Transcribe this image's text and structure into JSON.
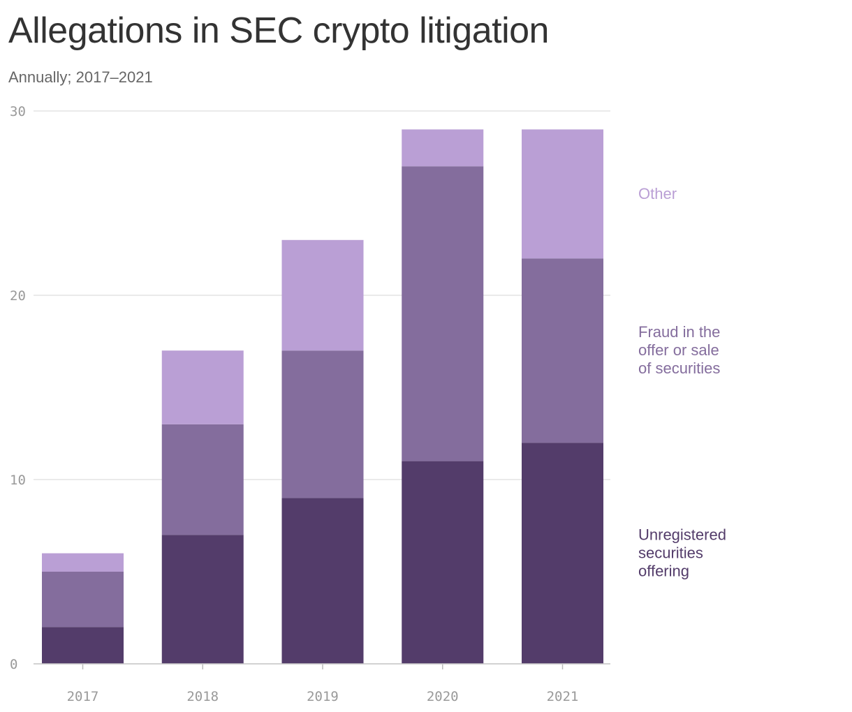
{
  "chart_data": {
    "type": "bar",
    "stacked": true,
    "title": "Allegations in SEC crypto litigation",
    "subtitle": "Annually; 2017–2021",
    "categories": [
      "2017",
      "2018",
      "2019",
      "2020",
      "2021"
    ],
    "series": [
      {
        "name": "Unregistered securities offering",
        "label_lines": [
          "Unregistered",
          "securities",
          "offering"
        ],
        "color": "#533c6a",
        "values": [
          2,
          7,
          9,
          11,
          12
        ]
      },
      {
        "name": "Fraud in the offer or sale of securities",
        "label_lines": [
          "Fraud in the",
          "offer or sale",
          "of securities"
        ],
        "color": "#846d9d",
        "values": [
          3,
          6,
          8,
          16,
          10
        ]
      },
      {
        "name": "Other",
        "label_lines": [
          "Other"
        ],
        "color": "#ba9fd5",
        "values": [
          1,
          4,
          6,
          2,
          7
        ]
      }
    ],
    "ylim": [
      0,
      30
    ],
    "yticks": [
      "0",
      "10",
      "20",
      "30"
    ],
    "xlabel": "",
    "ylabel": "",
    "grid": true,
    "legend_position": "right"
  }
}
